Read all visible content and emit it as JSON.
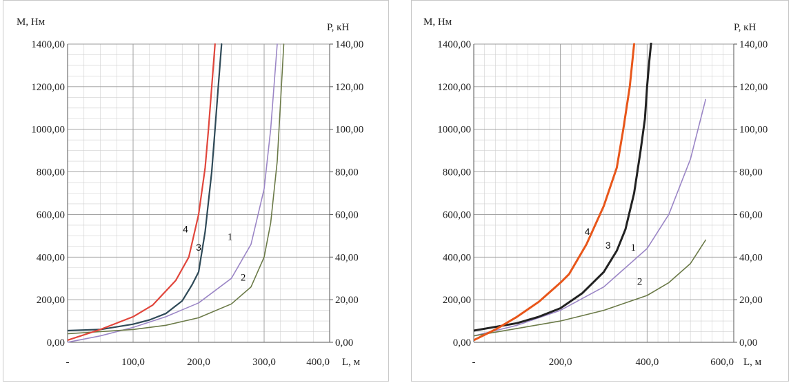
{
  "chart_data": [
    {
      "type": "line",
      "title": "",
      "xlabel": "L, м",
      "ylabel_left": "M, Нм",
      "ylabel_right": "P, кН",
      "xlim": [
        0,
        400
      ],
      "ylim_left": [
        0,
        1400
      ],
      "ylim_right": [
        0,
        140
      ],
      "x_ticks": [
        "-",
        "100,0",
        "200,0",
        "300,0",
        "400,0"
      ],
      "y_left_ticks": [
        "0,00",
        "200,00",
        "400,00",
        "600,00",
        "800,00",
        "1000,00",
        "1200,00",
        "1400,00"
      ],
      "y_right_ticks": [
        "0,00",
        "20,00",
        "40,00",
        "60,00",
        "80,00",
        "100,00",
        "120,00",
        "140,00"
      ],
      "grid": true,
      "series": [
        {
          "label": "1",
          "color": "#9b86c6",
          "x": [
            0,
            50,
            100,
            150,
            200,
            250,
            280,
            300,
            310,
            320
          ],
          "y": [
            0,
            30,
            70,
            120,
            185,
            300,
            460,
            720,
            1000,
            1400
          ]
        },
        {
          "label": "2",
          "color": "#6b7a48",
          "x": [
            0,
            100,
            150,
            200,
            250,
            280,
            300,
            310,
            320,
            330
          ],
          "y": [
            40,
            60,
            80,
            115,
            180,
            260,
            400,
            560,
            850,
            1400
          ]
        },
        {
          "label": "3",
          "color": "#2f4a58",
          "x": [
            0,
            50,
            100,
            125,
            150,
            175,
            190,
            200,
            210,
            220,
            225,
            230,
            235
          ],
          "y": [
            55,
            60,
            85,
            105,
            135,
            195,
            270,
            330,
            520,
            800,
            1000,
            1200,
            1400
          ]
        },
        {
          "label": "4",
          "color": "#e1463c",
          "x": [
            0,
            50,
            100,
            130,
            165,
            185,
            200,
            210,
            215,
            225
          ],
          "y": [
            10,
            60,
            120,
            175,
            290,
            400,
            600,
            820,
            1000,
            1400
          ]
        }
      ],
      "label_points": [
        {
          "text": "1",
          "x": 248,
          "y": 480
        },
        {
          "text": "2",
          "x": 268,
          "y": 290
        },
        {
          "text": "3",
          "x": 200,
          "y": 430
        },
        {
          "text": "4",
          "x": 180,
          "y": 515
        }
      ]
    },
    {
      "type": "line",
      "title": "",
      "xlabel": "L, м",
      "ylabel_left": "M, Нм",
      "ylabel_right": "P, кН",
      "xlim": [
        0,
        600
      ],
      "ylim_left": [
        0,
        1400
      ],
      "ylim_right": [
        0,
        140
      ],
      "x_ticks": [
        "-",
        "200,0",
        "400,0",
        "600,0"
      ],
      "y_left_ticks": [
        "0,00",
        "200,00",
        "400,00",
        "600,00",
        "800,00",
        "1000,00",
        "1200,00",
        "1400,00"
      ],
      "y_right_ticks": [
        "0,00",
        "20,00",
        "40,00",
        "60,00",
        "80,00",
        "100,00",
        "120,00",
        "140,00"
      ],
      "grid": true,
      "series": [
        {
          "label": "1",
          "color": "#9b86c6",
          "x": [
            0,
            100,
            200,
            300,
            400,
            450,
            500,
            535
          ],
          "y": [
            30,
            80,
            150,
            260,
            440,
            600,
            860,
            1140
          ]
        },
        {
          "label": "2",
          "color": "#6b7a48",
          "x": [
            0,
            100,
            200,
            300,
            400,
            450,
            500,
            535
          ],
          "y": [
            30,
            65,
            100,
            150,
            220,
            280,
            370,
            480
          ]
        },
        {
          "label": "3",
          "color": "#222222",
          "x": [
            0,
            100,
            150,
            200,
            250,
            300,
            330,
            350,
            370,
            385,
            395,
            400,
            405,
            410
          ],
          "y": [
            55,
            90,
            120,
            160,
            230,
            330,
            430,
            530,
            700,
            900,
            1050,
            1200,
            1320,
            1420
          ]
        },
        {
          "label": "4",
          "color": "#e8561a",
          "x": [
            0,
            50,
            100,
            150,
            200,
            220,
            260,
            300,
            330,
            345,
            360,
            370
          ],
          "y": [
            10,
            60,
            120,
            190,
            280,
            320,
            460,
            640,
            820,
            1000,
            1200,
            1400
          ]
        }
      ],
      "label_points": [
        {
          "text": "1",
          "x": 368,
          "y": 430
        },
        {
          "text": "2",
          "x": 383,
          "y": 270
        },
        {
          "text": "3",
          "x": 310,
          "y": 440
        },
        {
          "text": "4",
          "x": 262,
          "y": 505
        }
      ]
    }
  ]
}
